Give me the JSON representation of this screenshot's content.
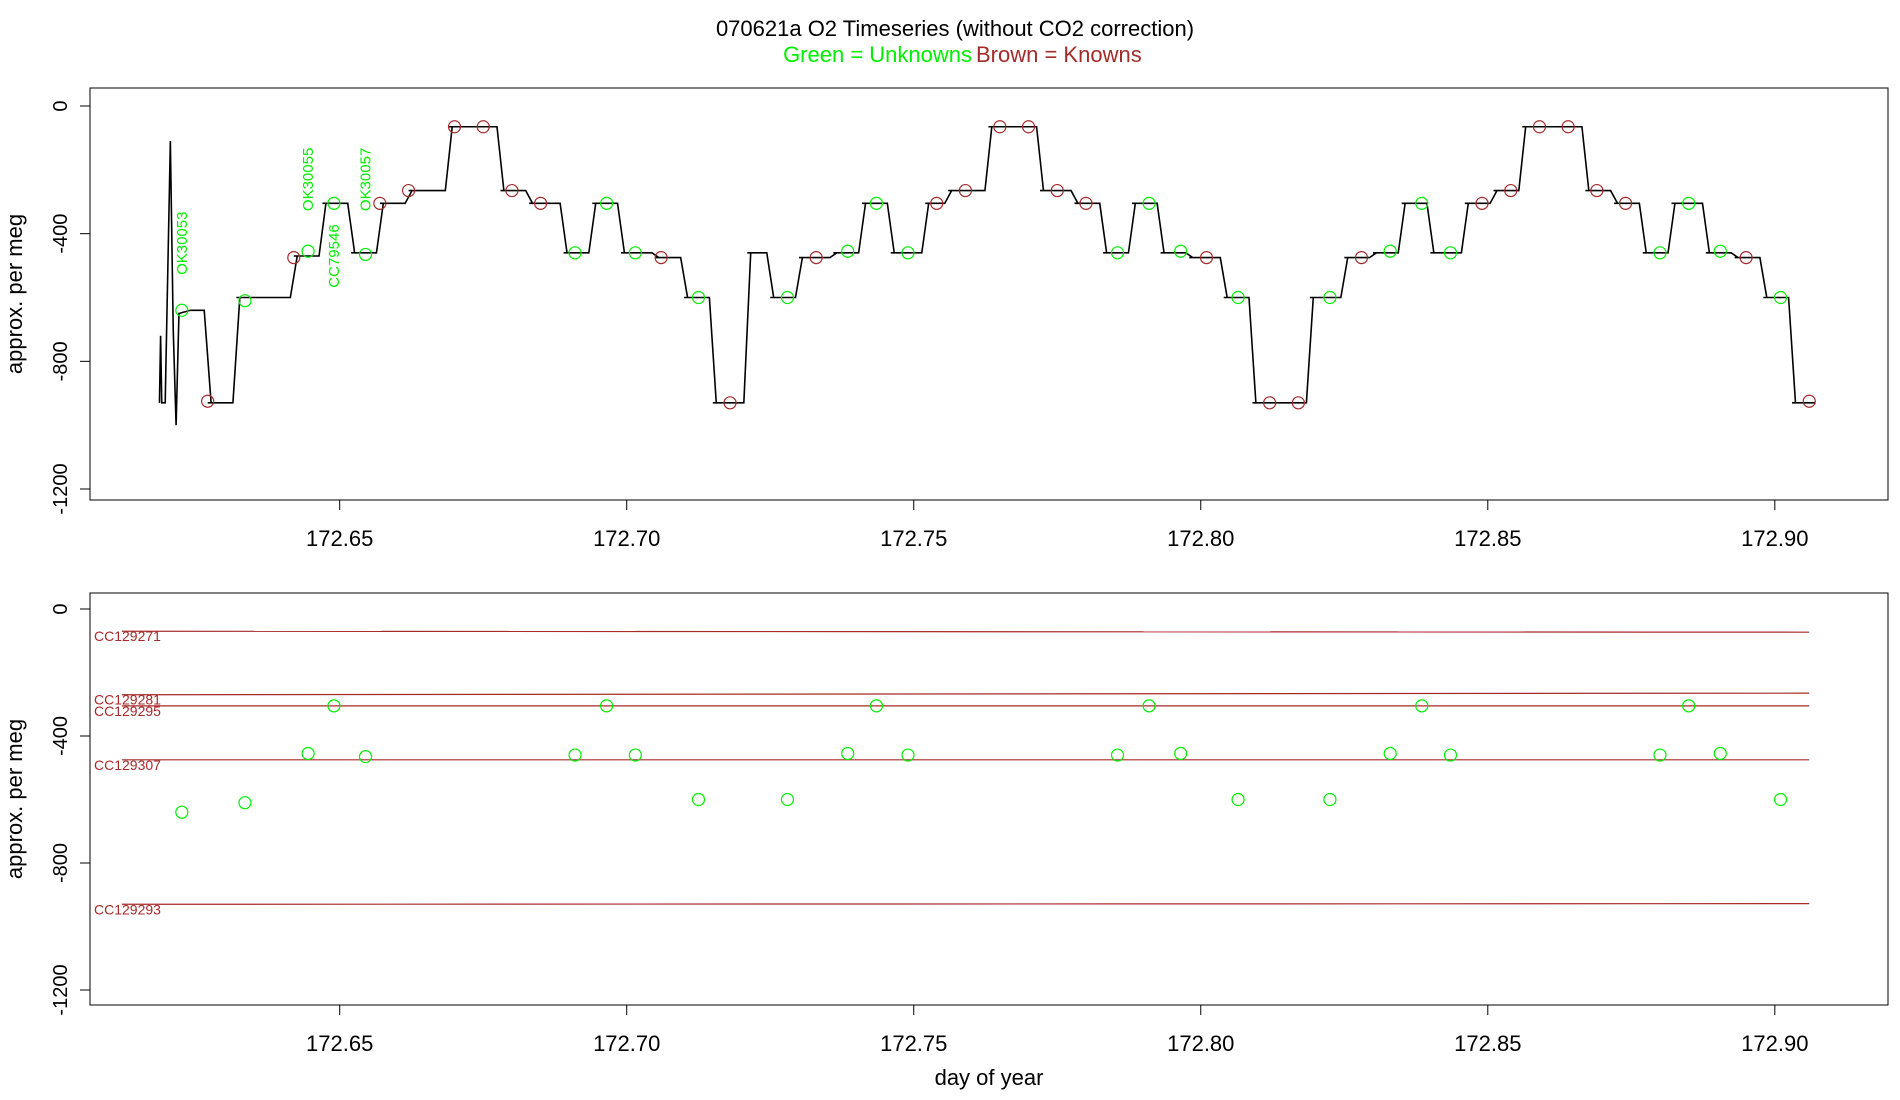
{
  "title": {
    "main": "070621a   O2 Timeseries (without CO2 correction)",
    "unknowns": "Green = Unknowns",
    "knowns": "Brown = Knowns"
  },
  "colors": {
    "unknown": "#00ee00",
    "known": "#a52a2a",
    "trace": "#000000"
  },
  "chart_data": [
    {
      "type": "line",
      "panel": "top",
      "ylabel": "approx. per meg",
      "xlabel": "",
      "xlim": [
        172.618,
        172.907
      ],
      "ylim": [
        -1200,
        0
      ],
      "yticks": [
        0,
        -400,
        -800,
        -1200
      ],
      "yticklabels": [
        "0",
        "-400",
        "-800",
        "-1200"
      ],
      "xticks": [
        172.65,
        172.7,
        172.75,
        172.8,
        172.85,
        172.9
      ],
      "xticklabels": [
        "172.65",
        "172.70",
        "172.75",
        "172.80",
        "172.85",
        "172.90"
      ],
      "step_levels": [
        [
          172.62,
          -640
        ],
        [
          172.627,
          -930
        ],
        [
          172.632,
          -600
        ],
        [
          172.642,
          -470
        ],
        [
          172.647,
          -305
        ],
        [
          172.652,
          -460
        ],
        [
          172.657,
          -305
        ],
        [
          172.662,
          -265
        ],
        [
          172.669,
          -65
        ],
        [
          172.678,
          -265
        ],
        [
          172.683,
          -305
        ],
        [
          172.689,
          -460
        ],
        [
          172.694,
          -305
        ],
        [
          172.699,
          -460
        ],
        [
          172.705,
          -475
        ],
        [
          172.71,
          -600
        ],
        [
          172.715,
          -930
        ],
        [
          172.721,
          -460
        ],
        [
          172.725,
          -600
        ],
        [
          172.73,
          -475
        ],
        [
          172.736,
          -460
        ],
        [
          172.741,
          -305
        ],
        [
          172.746,
          -460
        ],
        [
          172.752,
          -305
        ],
        [
          172.756,
          -265
        ],
        [
          172.763,
          -65
        ],
        [
          172.772,
          -265
        ],
        [
          172.778,
          -305
        ],
        [
          172.783,
          -460
        ],
        [
          172.788,
          -305
        ],
        [
          172.793,
          -460
        ],
        [
          172.798,
          -475
        ],
        [
          172.804,
          -600
        ],
        [
          172.809,
          -930
        ],
        [
          172.819,
          -600
        ],
        [
          172.825,
          -475
        ],
        [
          172.83,
          -460
        ],
        [
          172.835,
          -305
        ],
        [
          172.84,
          -460
        ],
        [
          172.846,
          -305
        ],
        [
          172.851,
          -265
        ],
        [
          172.856,
          -65
        ],
        [
          172.867,
          -265
        ],
        [
          172.872,
          -305
        ],
        [
          172.877,
          -460
        ],
        [
          172.882,
          -305
        ],
        [
          172.888,
          -460
        ],
        [
          172.893,
          -475
        ],
        [
          172.898,
          -600
        ],
        [
          172.903,
          -930
        ],
        [
          172.9065,
          -930
        ]
      ],
      "unknown_points": [
        [
          172.6225,
          -640
        ],
        [
          172.6335,
          -610
        ],
        [
          172.6445,
          -455
        ],
        [
          172.649,
          -305
        ],
        [
          172.6545,
          -465
        ],
        [
          172.691,
          -460
        ],
        [
          172.6965,
          -305
        ],
        [
          172.7015,
          -460
        ],
        [
          172.7125,
          -600
        ],
        [
          172.728,
          -600
        ],
        [
          172.7385,
          -455
        ],
        [
          172.7435,
          -305
        ],
        [
          172.749,
          -460
        ],
        [
          172.7855,
          -460
        ],
        [
          172.791,
          -305
        ],
        [
          172.7965,
          -455
        ],
        [
          172.8065,
          -600
        ],
        [
          172.8225,
          -600
        ],
        [
          172.833,
          -455
        ],
        [
          172.8385,
          -305
        ],
        [
          172.8435,
          -460
        ],
        [
          172.88,
          -460
        ],
        [
          172.885,
          -305
        ],
        [
          172.8905,
          -455
        ],
        [
          172.901,
          -600
        ]
      ],
      "known_points": [
        [
          172.627,
          -925
        ],
        [
          172.642,
          -475
        ],
        [
          172.657,
          -305
        ],
        [
          172.662,
          -265
        ],
        [
          172.67,
          -65
        ],
        [
          172.675,
          -65
        ],
        [
          172.68,
          -265
        ],
        [
          172.685,
          -305
        ],
        [
          172.706,
          -475
        ],
        [
          172.718,
          -930
        ],
        [
          172.733,
          -475
        ],
        [
          172.754,
          -305
        ],
        [
          172.759,
          -265
        ],
        [
          172.765,
          -65
        ],
        [
          172.77,
          -65
        ],
        [
          172.775,
          -265
        ],
        [
          172.78,
          -305
        ],
        [
          172.801,
          -475
        ],
        [
          172.812,
          -930
        ],
        [
          172.817,
          -930
        ],
        [
          172.828,
          -475
        ],
        [
          172.849,
          -305
        ],
        [
          172.854,
          -265
        ],
        [
          172.859,
          -65
        ],
        [
          172.864,
          -65
        ],
        [
          172.869,
          -265
        ],
        [
          172.874,
          -305
        ],
        [
          172.895,
          -475
        ],
        [
          172.906,
          -925
        ]
      ],
      "annotations": [
        {
          "text": "OK30053",
          "x": 172.6225,
          "y": -430
        },
        {
          "text": "OK30055",
          "x": 172.6445,
          "y": -230
        },
        {
          "text": "CC79546",
          "x": 172.649,
          "y": -470
        },
        {
          "text": "OK30057",
          "x": 172.6545,
          "y": -230
        }
      ]
    },
    {
      "type": "scatter",
      "panel": "bottom",
      "ylabel": "approx. per meg",
      "xlabel": "day of year",
      "xlim": [
        172.618,
        172.907
      ],
      "ylim": [
        -1200,
        0
      ],
      "yticks": [
        0,
        -400,
        -800,
        -1200
      ],
      "yticklabels": [
        "0",
        "-400",
        "-800",
        "-1200"
      ],
      "xticks": [
        172.65,
        172.7,
        172.75,
        172.8,
        172.85,
        172.9
      ],
      "xticklabels": [
        "172.65",
        "172.70",
        "172.75",
        "172.80",
        "172.85",
        "172.90"
      ],
      "reference_lines": [
        {
          "name": "CC129271",
          "x": [
            172.6225,
            172.906
          ],
          "y": [
            -70,
            -73
          ]
        },
        {
          "name": "CC129281",
          "x": [
            172.6225,
            172.906
          ],
          "y": [
            -270,
            -265
          ]
        },
        {
          "name": "CC129295",
          "x": [
            172.6225,
            172.906
          ],
          "y": [
            -305,
            -305
          ]
        },
        {
          "name": "CC129307",
          "x": [
            172.6225,
            172.906
          ],
          "y": [
            -475,
            -475
          ]
        },
        {
          "name": "CC129293",
          "x": [
            172.6225,
            172.906
          ],
          "y": [
            -930,
            -928
          ]
        }
      ],
      "unknown_points": [
        [
          172.6225,
          -640
        ],
        [
          172.6335,
          -610
        ],
        [
          172.6445,
          -455
        ],
        [
          172.649,
          -305
        ],
        [
          172.6545,
          -465
        ],
        [
          172.691,
          -460
        ],
        [
          172.6965,
          -305
        ],
        [
          172.7015,
          -460
        ],
        [
          172.7125,
          -600
        ],
        [
          172.728,
          -600
        ],
        [
          172.7385,
          -455
        ],
        [
          172.7435,
          -305
        ],
        [
          172.749,
          -460
        ],
        [
          172.7855,
          -460
        ],
        [
          172.791,
          -305
        ],
        [
          172.7965,
          -455
        ],
        [
          172.8065,
          -600
        ],
        [
          172.8225,
          -600
        ],
        [
          172.833,
          -455
        ],
        [
          172.8385,
          -305
        ],
        [
          172.8435,
          -460
        ],
        [
          172.88,
          -460
        ],
        [
          172.885,
          -305
        ],
        [
          172.8905,
          -455
        ],
        [
          172.901,
          -600
        ]
      ]
    }
  ]
}
